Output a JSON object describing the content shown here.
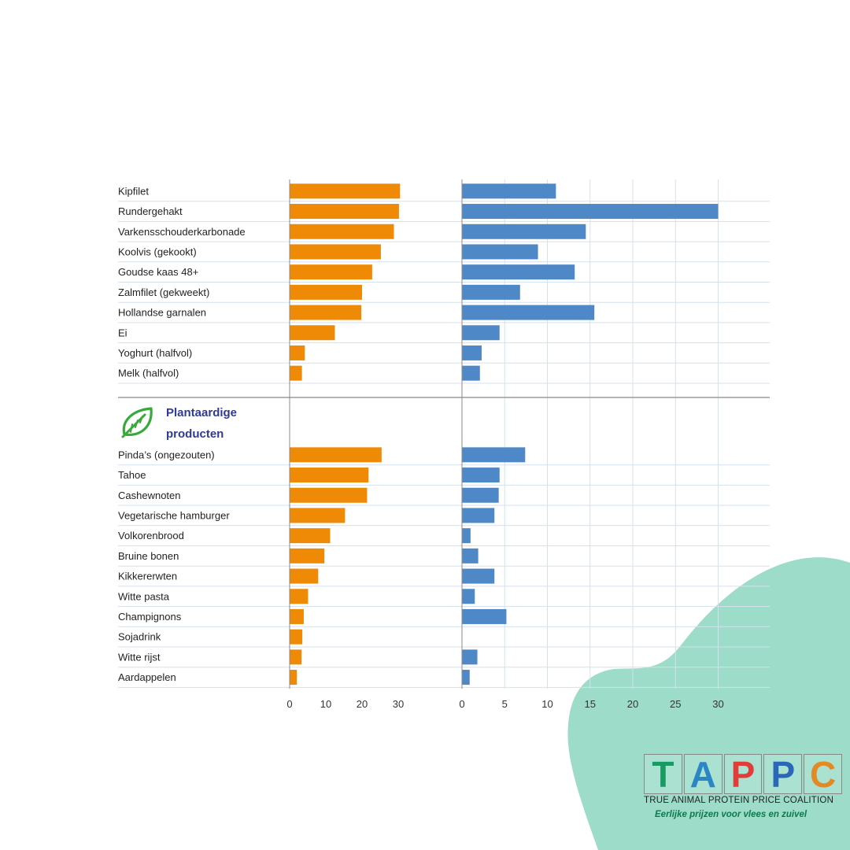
{
  "chart_data": {
    "type": "bar",
    "groups": [
      {
        "title": "",
        "categories": [
          "Kipfilet",
          "Rundergehakt",
          "Varkensschouderkarbonade",
          "Koolvis (gekookt)",
          "Goudse kaas 48+",
          "Zalmfilet (gekweekt)",
          "Hollandse garnalen",
          "Ei",
          "Yoghurt (halfvol)",
          "Melk (halfvol)"
        ],
        "orange_values": [
          30.5,
          30.2,
          28.8,
          25.2,
          22.8,
          20.0,
          19.8,
          12.5,
          4.2,
          3.4
        ],
        "blue_values": [
          11.0,
          30.0,
          14.5,
          8.9,
          13.2,
          6.8,
          15.5,
          4.4,
          2.3,
          2.1
        ]
      },
      {
        "title": "Plantaardige producten",
        "title_lines": [
          "Plantaardige",
          "producten"
        ],
        "categories": [
          "Pinda’s (ongezouten)",
          "Tahoe",
          "Cashewnoten",
          "Vegetarische hamburger",
          "Volkorenbrood",
          "Bruine bonen",
          "Kikkererwten",
          "Witte pasta",
          "Champignons",
          "Sojadrink",
          "Witte rijst",
          "Aardappelen"
        ],
        "orange_values": [
          25.4,
          21.8,
          21.4,
          15.3,
          11.2,
          9.6,
          7.9,
          5.1,
          3.9,
          3.5,
          3.3,
          2.0
        ],
        "blue_values": [
          7.4,
          4.4,
          4.3,
          3.8,
          1.0,
          1.9,
          3.8,
          1.5,
          5.2,
          null,
          1.8,
          0.9
        ]
      }
    ],
    "axes": [
      {
        "series": "orange",
        "xlim": [
          0,
          33
        ],
        "ticks": [
          0,
          10,
          20,
          30
        ]
      },
      {
        "series": "blue",
        "xlim": [
          0,
          36
        ],
        "ticks": [
          0,
          5,
          10,
          15,
          20,
          25,
          30
        ]
      }
    ],
    "colors": {
      "orange": "#ef8a06",
      "blue": "#4f88c6",
      "grid": "#d5e1ee",
      "divider": "#9a9a9a"
    },
    "grid": true,
    "group_icon": "leaf-icon"
  },
  "brand": {
    "letters": [
      {
        "char": "T",
        "color": "#1a9a63"
      },
      {
        "char": "A",
        "color": "#2b86c5"
      },
      {
        "char": "P",
        "color": "#e13c3a"
      },
      {
        "char": "P",
        "color": "#2c66b8"
      },
      {
        "char": "C",
        "color": "#e48a24"
      }
    ],
    "tagline": "TRUE ANIMAL PROTEIN PRICE COALITION",
    "slogan": "Eerlijke prijzen voor vlees en zuivel",
    "blob_color": "#9cdcc8"
  }
}
